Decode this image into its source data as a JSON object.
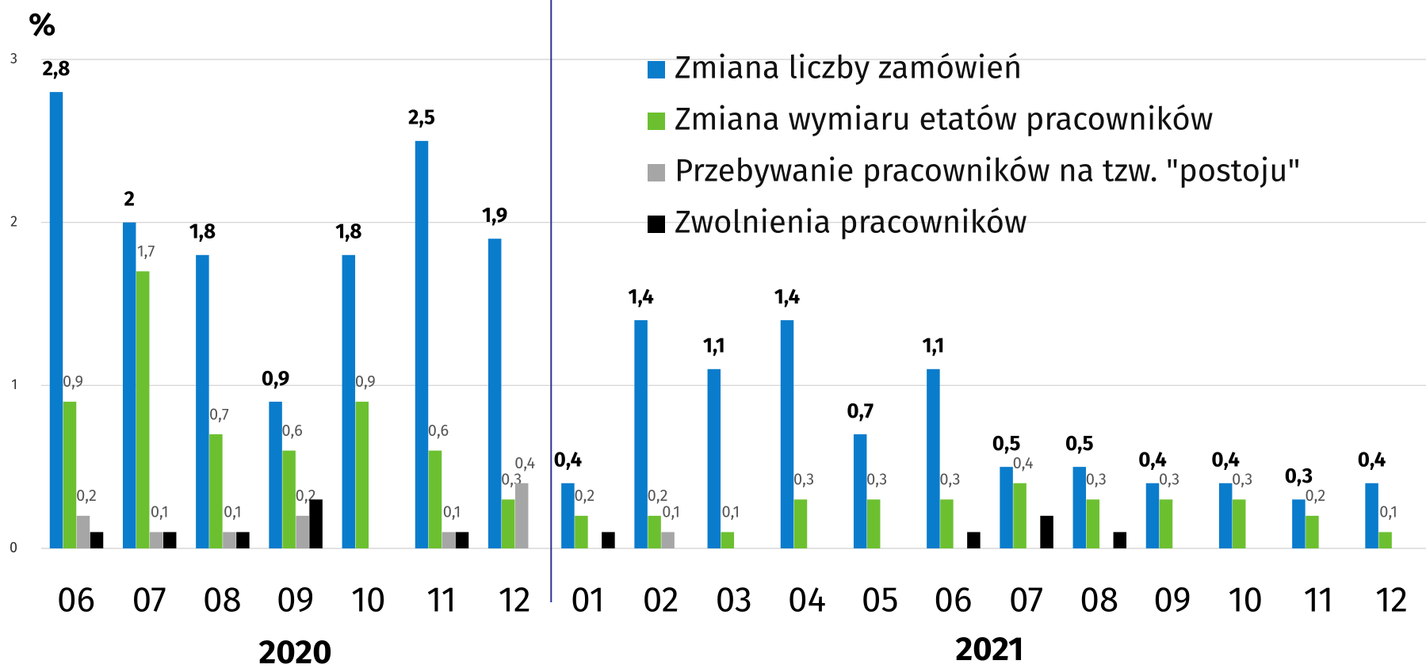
{
  "chart_data": {
    "type": "bar",
    "y_label": "%",
    "categories": [
      "06",
      "07",
      "08",
      "09",
      "10",
      "11",
      "12",
      "01",
      "02",
      "03",
      "04",
      "05",
      "06",
      "07",
      "08",
      "09",
      "10",
      "11",
      "12"
    ],
    "groups": [
      "2020",
      "2021"
    ],
    "series": [
      {
        "name": "Zmiana liczby zamówień",
        "color": "#0a7ccc",
        "values": [
          2.8,
          2,
          1.8,
          0.9,
          1.8,
          2.5,
          1.9,
          0.4,
          1.4,
          1.1,
          1.4,
          0.7,
          1.1,
          0.5,
          0.5,
          0.4,
          0.4,
          0.3,
          0.4
        ],
        "value_labels": [
          "2,8",
          "2",
          "1,8",
          "0,9",
          "1,8",
          "2,5",
          "1,9",
          "0,4",
          "1,4",
          "1,1",
          "1,4",
          "0,7",
          "1,1",
          "0,5",
          "0,5",
          "0,4",
          "0,4",
          "0,3",
          "0,4"
        ]
      },
      {
        "name": "Zmiana wymiaru etatów pracowników",
        "color": "#6cc030",
        "values": [
          0.9,
          1.7,
          0.7,
          0.6,
          0.9,
          0.6,
          0.3,
          0.2,
          0.2,
          0.1,
          0.3,
          0.3,
          0.3,
          0.4,
          0.3,
          0.3,
          0.3,
          0.2,
          0.1
        ],
        "value_labels": [
          "0,9",
          "1,7",
          "0,7",
          "0,6",
          "0,9",
          "0,6",
          "0,3",
          "0,2",
          "0,2",
          "0,1",
          "0,3",
          "0,3",
          "0,3",
          "0,4",
          "0,3",
          "0,3",
          "0,3",
          "0,2",
          "0,1"
        ]
      },
      {
        "name": "Przebywanie pracowników na tzw. \"postoju\"",
        "color": "#a6a6a6",
        "values": [
          0.2,
          0.1,
          0.1,
          0.2,
          null,
          0.1,
          0.4,
          null,
          0.1,
          null,
          null,
          null,
          null,
          null,
          null,
          null,
          null,
          null,
          null
        ],
        "value_labels": [
          "0,2",
          "0,1",
          "0,1",
          "0,2",
          null,
          "0,1",
          "0,4",
          null,
          "0,1",
          null,
          null,
          null,
          null,
          null,
          null,
          null,
          null,
          null,
          null
        ]
      },
      {
        "name": "Zwolnienia pracowników",
        "color": "#000000",
        "values": [
          0.1,
          0.1,
          0.1,
          0.3,
          null,
          0.1,
          null,
          0.1,
          null,
          null,
          null,
          null,
          0.1,
          0.2,
          0.1,
          null,
          null,
          null,
          null
        ]
      }
    ],
    "ylim": [
      0,
      3
    ],
    "yticks": [
      0,
      1,
      2,
      3
    ],
    "grid": true
  }
}
